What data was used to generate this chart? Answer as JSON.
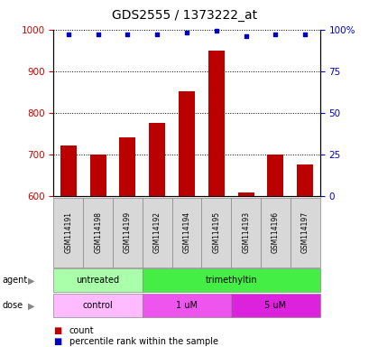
{
  "title": "GDS2555 / 1373222_at",
  "samples": [
    "GSM114191",
    "GSM114198",
    "GSM114199",
    "GSM114192",
    "GSM114194",
    "GSM114195",
    "GSM114193",
    "GSM114196",
    "GSM114197"
  ],
  "count_values": [
    722,
    700,
    740,
    775,
    852,
    950,
    608,
    700,
    675
  ],
  "percentile_values": [
    97,
    97,
    97,
    97,
    98,
    99,
    96,
    97,
    97
  ],
  "ylim_left": [
    600,
    1000
  ],
  "ylim_right": [
    0,
    100
  ],
  "yticks_left": [
    600,
    700,
    800,
    900,
    1000
  ],
  "yticks_right": [
    0,
    25,
    50,
    75,
    100
  ],
  "bar_color": "#bb0000",
  "dot_color": "#0000bb",
  "agent_groups": [
    {
      "label": "untreated",
      "start": 0,
      "end": 3,
      "color": "#aaffaa"
    },
    {
      "label": "trimethyltin",
      "start": 3,
      "end": 9,
      "color": "#44ee44"
    }
  ],
  "dose_groups": [
    {
      "label": "control",
      "start": 0,
      "end": 3,
      "color": "#ffbbff"
    },
    {
      "label": "1 uM",
      "start": 3,
      "end": 6,
      "color": "#ee55ee"
    },
    {
      "label": "5 uM",
      "start": 6,
      "end": 9,
      "color": "#dd22dd"
    }
  ],
  "agent_label": "agent",
  "dose_label": "dose",
  "legend_count_label": "count",
  "legend_pct_label": "percentile rank within the sample",
  "title_fontsize": 10,
  "tick_fontsize": 7.5,
  "sample_fontsize": 5.5,
  "row_fontsize": 7,
  "legend_fontsize": 7
}
